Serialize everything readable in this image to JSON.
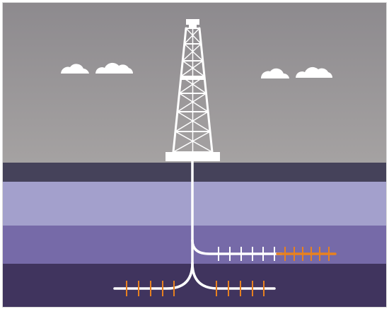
{
  "diagram": {
    "colors": {
      "sky_top": "#8d8a8e",
      "sky_bottom": "#a5a2a2",
      "surface": "#45425a",
      "layer_light": "#a3a0cc",
      "layer_mid": "#766aa8",
      "layer_deep": "#40345e",
      "rig": "#ffffff",
      "pipe": "#ffffff",
      "fracture": "#e8811f",
      "cloud": "#ffffff",
      "border": "#d9d9d9"
    },
    "elements": {
      "drilling_rig": "derrick-tower",
      "clouds": [
        "cloud-left-small",
        "cloud-left-large",
        "cloud-right-small",
        "cloud-right-large"
      ],
      "rock_layers": [
        "surface",
        "upper-layer",
        "middle-layer",
        "deep-layer"
      ],
      "wells": [
        "vertical-wellbore",
        "upper-lateral",
        "lower-lateral-left",
        "lower-lateral-right"
      ],
      "fracture_zones": [
        "upper-fracture-ticks-white",
        "upper-fracture-ticks-orange",
        "lower-left-fracture-ticks",
        "lower-right-fracture-ticks"
      ]
    }
  }
}
